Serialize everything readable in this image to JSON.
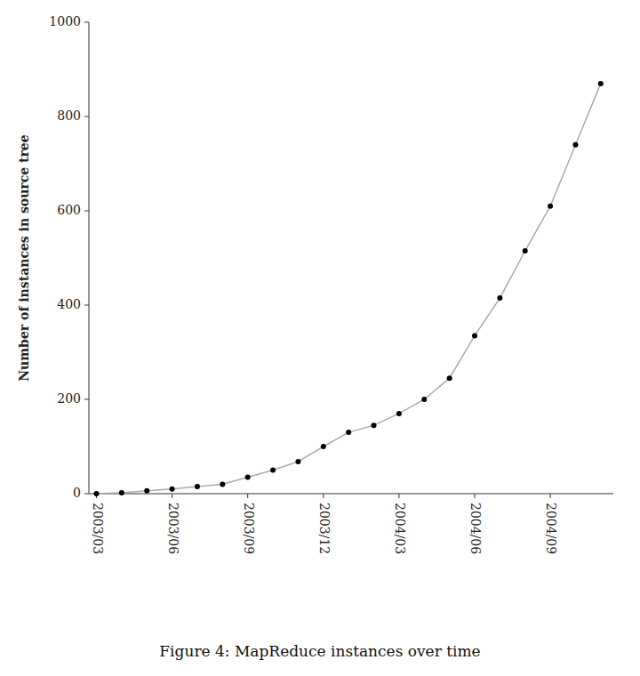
{
  "chart_data": {
    "type": "line",
    "ylabel": "Number of instances in source tree",
    "caption": "Figure 4: MapReduce instances over time",
    "x": [
      0,
      1,
      2,
      3,
      4,
      5,
      6,
      7,
      8,
      9,
      10,
      11,
      12,
      13,
      14,
      15,
      16,
      17,
      18,
      19,
      20
    ],
    "values": [
      0,
      2,
      6,
      10,
      15,
      20,
      35,
      50,
      68,
      100,
      130,
      145,
      170,
      200,
      245,
      335,
      415,
      515,
      610,
      740,
      870
    ],
    "xlim": [
      -0.3,
      20.5
    ],
    "xticks": [
      {
        "value": 0,
        "label": "2003/03"
      },
      {
        "value": 3,
        "label": "2003/06"
      },
      {
        "value": 6,
        "label": "2003/09"
      },
      {
        "value": 9,
        "label": "2003/12"
      },
      {
        "value": 12,
        "label": "2004/03"
      },
      {
        "value": 15,
        "label": "2004/06"
      },
      {
        "value": 18,
        "label": "2004/09"
      }
    ],
    "ylim": [
      0,
      1000
    ],
    "yticks": [
      0,
      200,
      400,
      600,
      800,
      1000
    ],
    "color": "#aaaaaa",
    "colors": [
      "#000000",
      "#000000",
      "#000000",
      "#000000",
      "#000000",
      "#000000",
      "#000000",
      "#000000",
      "#000000",
      "#000000",
      "#000000",
      "#000000",
      "#000000",
      "#000000",
      "#000000",
      "#000000",
      "#000000",
      "#000000",
      "#000000",
      "#000000",
      "#000000"
    ],
    "marker": "circle",
    "grid": false
  }
}
